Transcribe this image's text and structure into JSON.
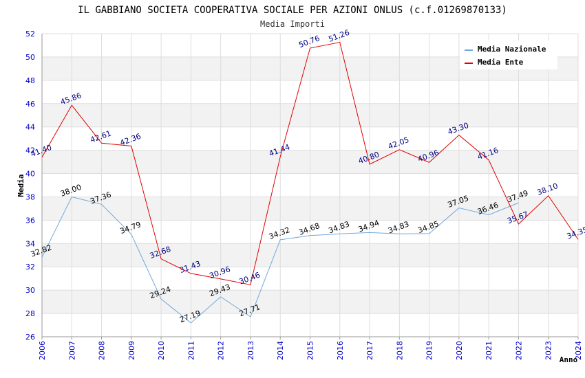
{
  "chart_data": {
    "type": "line",
    "title": "IL GABBIANO SOCIETA COOPERATIVA SOCIALE PER AZIONI ONLUS (c.f.01269870133)",
    "subtitle": "Media Importi",
    "xlabel": "Anno",
    "ylabel": "Media",
    "ylim": [
      26,
      52
    ],
    "yticks": [
      26,
      28,
      30,
      32,
      34,
      36,
      38,
      40,
      42,
      44,
      46,
      48,
      50,
      52
    ],
    "categories": [
      "2006",
      "2007",
      "2008",
      "2009",
      "2010",
      "2011",
      "2012",
      "2013",
      "2014",
      "2015",
      "2016",
      "2017",
      "2018",
      "2019",
      "2020",
      "2021",
      "2022",
      "2023",
      "2024"
    ],
    "series": [
      {
        "name": "Media Nazionale",
        "color": "#6fa8dc",
        "values": [
          32.82,
          38.0,
          37.36,
          34.79,
          29.24,
          27.19,
          29.43,
          27.71,
          34.32,
          34.68,
          34.83,
          34.94,
          34.83,
          34.85,
          37.05,
          36.46,
          37.49,
          null,
          null
        ],
        "labels": [
          "32.82",
          "38.00",
          "37.36",
          "34.79",
          "29.24",
          "27.19",
          "29.43",
          "27.71",
          "34.32",
          "34.68",
          "34.83",
          "34.94",
          "34.83",
          "34.85",
          "37.05",
          "36.46",
          "37.49",
          null,
          null
        ]
      },
      {
        "name": "Media Ente",
        "color": "#e00000",
        "values": [
          41.4,
          45.86,
          42.61,
          42.36,
          32.68,
          31.43,
          30.96,
          30.46,
          41.44,
          50.76,
          51.26,
          40.8,
          42.05,
          40.96,
          43.3,
          41.16,
          35.67,
          38.1,
          34.35
        ],
        "labels": [
          "41.40",
          "45.86",
          "42.61",
          "42.36",
          "32.68",
          "31.43",
          "30.96",
          "30.46",
          "41.44",
          "50.76",
          "51.26",
          "40.80",
          "42.05",
          "40.96",
          "43.30",
          "41.16",
          "35.67",
          "38.10",
          "34.35"
        ]
      }
    ],
    "grid": true,
    "legend": "top-right"
  }
}
